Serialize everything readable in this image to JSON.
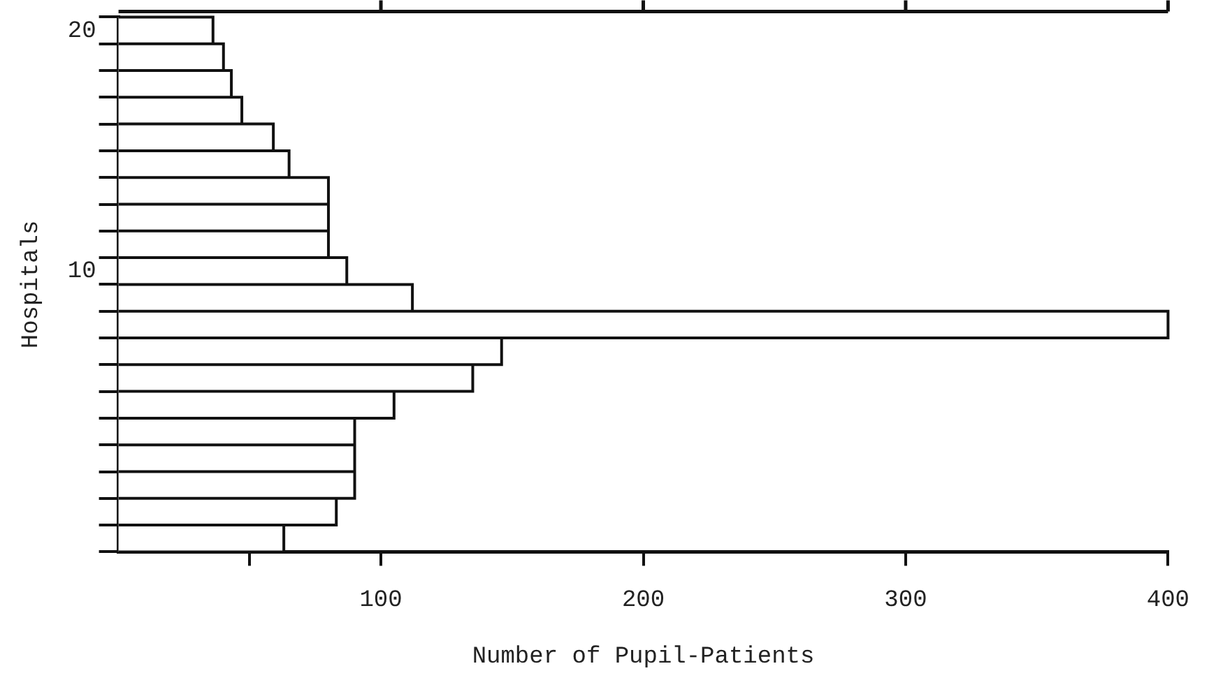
{
  "chart_data": {
    "type": "bar",
    "orientation": "horizontal",
    "xlabel": "Number of Pupil-Patients",
    "ylabel": "Hospitals",
    "categories": [
      "20",
      null,
      null,
      null,
      null,
      null,
      null,
      null,
      null,
      "10",
      null,
      null,
      null,
      null,
      null,
      null,
      null,
      null,
      null,
      null
    ],
    "values": [
      36,
      40,
      43,
      47,
      59,
      65,
      80,
      80,
      80,
      87,
      112,
      400,
      146,
      135,
      105,
      90,
      90,
      90,
      83,
      63
    ],
    "color": "#ffffff",
    "xlim": [
      0,
      400
    ],
    "xticks": [
      {
        "value": 50,
        "label": null
      },
      100,
      200,
      300,
      400
    ],
    "grid": false,
    "legend": false
  }
}
